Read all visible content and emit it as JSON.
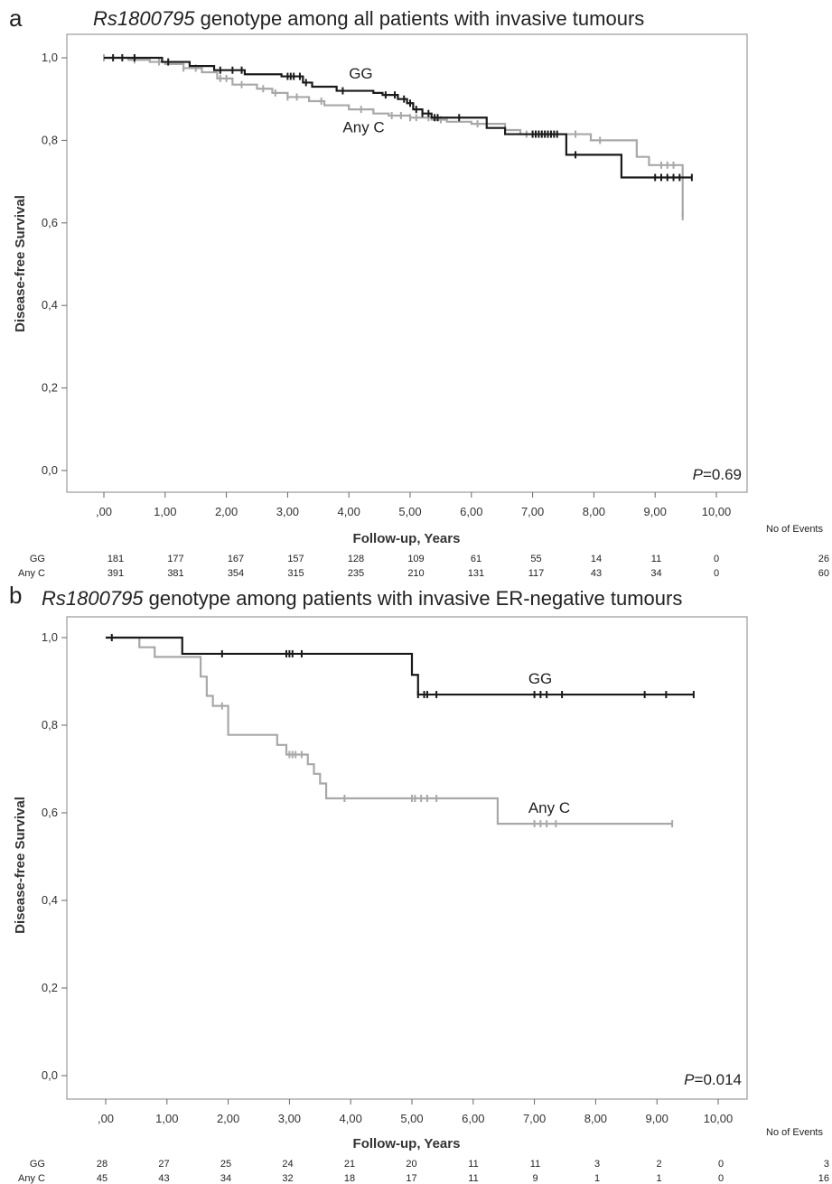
{
  "chart_data": [
    {
      "type": "line",
      "panel": "a",
      "title_italic": "Rs1800795",
      "title_rest": " genotype among all patients with invasive tumours",
      "xlabel": "Follow-up, Years",
      "ylabel": "Disease-free Survival",
      "xlim": [
        -0.3,
        10.5
      ],
      "ylim": [
        -0.05,
        1.06
      ],
      "xticks": [
        ",00",
        "1,00",
        "2,00",
        "3,00",
        "4,00",
        "5,00",
        "6,00",
        "7,00",
        "8,00",
        "9,00",
        "10,00"
      ],
      "yticks": [
        "0,0",
        "0,2",
        "0,4",
        "0,6",
        "0,8",
        "1,0"
      ],
      "p_label": "P",
      "p_value": "=0.69",
      "series": [
        {
          "name": "GG",
          "color": "#1a1a1a",
          "label_at": [
            4.0,
            0.95
          ],
          "steps": [
            [
              0.0,
              1.0
            ],
            [
              0.95,
              0.99
            ],
            [
              1.4,
              0.98
            ],
            [
              1.8,
              0.97
            ],
            [
              2.3,
              0.96
            ],
            [
              2.9,
              0.955
            ],
            [
              3.25,
              0.94
            ],
            [
              3.4,
              0.93
            ],
            [
              3.8,
              0.92
            ],
            [
              4.4,
              0.915
            ],
            [
              4.55,
              0.91
            ],
            [
              4.8,
              0.9
            ],
            [
              4.95,
              0.89
            ],
            [
              5.05,
              0.875
            ],
            [
              5.2,
              0.865
            ],
            [
              5.35,
              0.855
            ],
            [
              6.25,
              0.83
            ],
            [
              6.55,
              0.815
            ],
            [
              7.55,
              0.765
            ],
            [
              8.45,
              0.71
            ],
            [
              9.6,
              0.71
            ]
          ],
          "censors": [
            0.15,
            0.3,
            0.5,
            1.05,
            1.9,
            2.1,
            2.25,
            3.0,
            3.05,
            3.1,
            3.2,
            3.3,
            3.9,
            4.6,
            4.75,
            4.9,
            5.0,
            5.1,
            5.2,
            5.3,
            5.4,
            5.45,
            5.8,
            7.0,
            7.05,
            7.1,
            7.15,
            7.2,
            7.25,
            7.3,
            7.35,
            7.4,
            7.7,
            9.0,
            9.1,
            9.2,
            9.3,
            9.4,
            9.6
          ]
        },
        {
          "name": "Any C",
          "color": "#a8a8a8",
          "label_at": [
            3.9,
            0.82
          ],
          "steps": [
            [
              0.0,
              1.0
            ],
            [
              0.4,
              0.995
            ],
            [
              0.75,
              0.99
            ],
            [
              1.0,
              0.985
            ],
            [
              1.3,
              0.975
            ],
            [
              1.6,
              0.965
            ],
            [
              1.85,
              0.95
            ],
            [
              2.1,
              0.935
            ],
            [
              2.5,
              0.925
            ],
            [
              2.75,
              0.915
            ],
            [
              3.0,
              0.905
            ],
            [
              3.35,
              0.895
            ],
            [
              3.6,
              0.885
            ],
            [
              4.0,
              0.875
            ],
            [
              4.4,
              0.865
            ],
            [
              4.65,
              0.86
            ],
            [
              5.0,
              0.855
            ],
            [
              5.35,
              0.85
            ],
            [
              5.6,
              0.845
            ],
            [
              6.0,
              0.84
            ],
            [
              6.55,
              0.825
            ],
            [
              6.8,
              0.815
            ],
            [
              7.65,
              0.815
            ],
            [
              7.95,
              0.8
            ],
            [
              8.7,
              0.76
            ],
            [
              8.9,
              0.74
            ],
            [
              9.45,
              0.615
            ]
          ],
          "censors": [
            0.0,
            0.5,
            0.9,
            1.3,
            1.5,
            1.9,
            2.0,
            2.25,
            2.6,
            2.8,
            3.0,
            3.15,
            3.55,
            4.2,
            4.7,
            4.85,
            5.0,
            5.1,
            5.3,
            5.5,
            6.1,
            6.9,
            7.0,
            7.05,
            7.1,
            7.15,
            7.2,
            7.3,
            7.7,
            8.1,
            9.1,
            9.2,
            9.3,
            9.45
          ]
        }
      ],
      "risk_header": "No of Events",
      "risk_table": [
        {
          "name": "GG",
          "counts": [
            "181",
            "177",
            "167",
            "157",
            "128",
            "109",
            "61",
            "55",
            "14",
            "11",
            "0"
          ],
          "events": "26"
        },
        {
          "name": "Any C",
          "counts": [
            "391",
            "381",
            "354",
            "315",
            "235",
            "210",
            "131",
            "117",
            "43",
            "34",
            "0"
          ],
          "events": "60"
        }
      ]
    },
    {
      "type": "line",
      "panel": "b",
      "title_italic": "Rs1800795",
      "title_rest": " genotype among patients with invasive ER-negative tumours",
      "xlabel": "Follow-up, Years",
      "ylabel": "Disease-free Survival",
      "xlim": [
        -0.3,
        10.5
      ],
      "ylim": [
        -0.05,
        1.06
      ],
      "xticks": [
        ",00",
        "1,00",
        "2,00",
        "3,00",
        "4,00",
        "5,00",
        "6,00",
        "7,00",
        "8,00",
        "9,00",
        "10,00"
      ],
      "yticks": [
        "0,0",
        "0,2",
        "0,4",
        "0,6",
        "0,8",
        "1,0"
      ],
      "p_label": "P",
      "p_value": "=0.014",
      "series": [
        {
          "name": "GG",
          "color": "#1a1a1a",
          "label_at": [
            6.9,
            0.895
          ],
          "steps": [
            [
              0.0,
              1.0
            ],
            [
              1.25,
              0.963
            ],
            [
              5.0,
              0.915
            ],
            [
              5.1,
              0.87
            ],
            [
              9.6,
              0.87
            ]
          ],
          "censors": [
            0.1,
            1.9,
            2.95,
            3.0,
            3.05,
            3.2,
            5.1,
            5.2,
            5.25,
            5.4,
            7.0,
            7.1,
            7.2,
            7.45,
            8.8,
            9.15,
            9.6
          ]
        },
        {
          "name": "Any C",
          "color": "#a8a8a8",
          "label_at": [
            6.9,
            0.6
          ],
          "steps": [
            [
              0.0,
              1.0
            ],
            [
              0.55,
              0.978
            ],
            [
              0.8,
              0.956
            ],
            [
              1.55,
              0.911
            ],
            [
              1.65,
              0.867
            ],
            [
              1.75,
              0.844
            ],
            [
              2.0,
              0.778
            ],
            [
              2.8,
              0.755
            ],
            [
              2.95,
              0.733
            ],
            [
              3.3,
              0.711
            ],
            [
              3.4,
              0.689
            ],
            [
              3.5,
              0.667
            ],
            [
              3.6,
              0.633
            ],
            [
              6.4,
              0.575
            ],
            [
              9.25,
              0.575
            ]
          ],
          "censors": [
            1.9,
            3.0,
            3.05,
            3.1,
            3.2,
            3.9,
            5.0,
            5.05,
            5.15,
            5.25,
            5.4,
            7.0,
            7.1,
            7.2,
            7.35,
            9.25
          ]
        }
      ],
      "risk_header": "No of Events",
      "risk_table": [
        {
          "name": "GG",
          "counts": [
            "28",
            "27",
            "25",
            "24",
            "21",
            "20",
            "11",
            "11",
            "3",
            "2",
            "0"
          ],
          "events": "3"
        },
        {
          "name": "Any C",
          "counts": [
            "45",
            "43",
            "34",
            "32",
            "18",
            "17",
            "11",
            "9",
            "1",
            "1",
            "0"
          ],
          "events": "16"
        }
      ]
    }
  ]
}
